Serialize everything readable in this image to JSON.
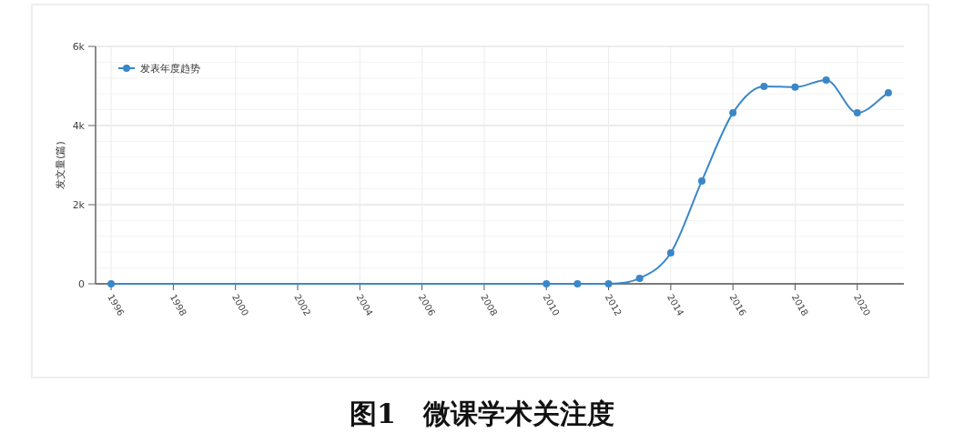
{
  "chart_data": {
    "type": "line",
    "ylabel": "发文量(篇)",
    "annotations": [
      "图1　微课学术关注度"
    ],
    "x": [
      1996,
      2010,
      2011,
      2012,
      2013,
      2014,
      2015,
      2016,
      2017,
      2018,
      2019,
      2020,
      2021
    ],
    "series": [
      {
        "name": "发表年度趋势",
        "color": "#3a87c8",
        "values": [
          0,
          0,
          0,
          0,
          140,
          780,
          2600,
          4320,
          4990,
          4970,
          5150,
          4320,
          4830
        ]
      }
    ],
    "xlim": [
      1995.5,
      2021.5
    ],
    "ylim": [
      0,
      6000
    ],
    "xticks": [
      1996,
      1998,
      2000,
      2002,
      2004,
      2006,
      2008,
      2010,
      2012,
      2014,
      2016,
      2018,
      2020
    ],
    "yticks": [
      0,
      {
        "value": 2000,
        "label": "2k"
      },
      {
        "value": 4000,
        "label": "4k"
      },
      {
        "value": 6000,
        "label": "6k"
      }
    ],
    "grid": true,
    "legend": "top left",
    "marker": "circle",
    "line_style": "solid"
  }
}
